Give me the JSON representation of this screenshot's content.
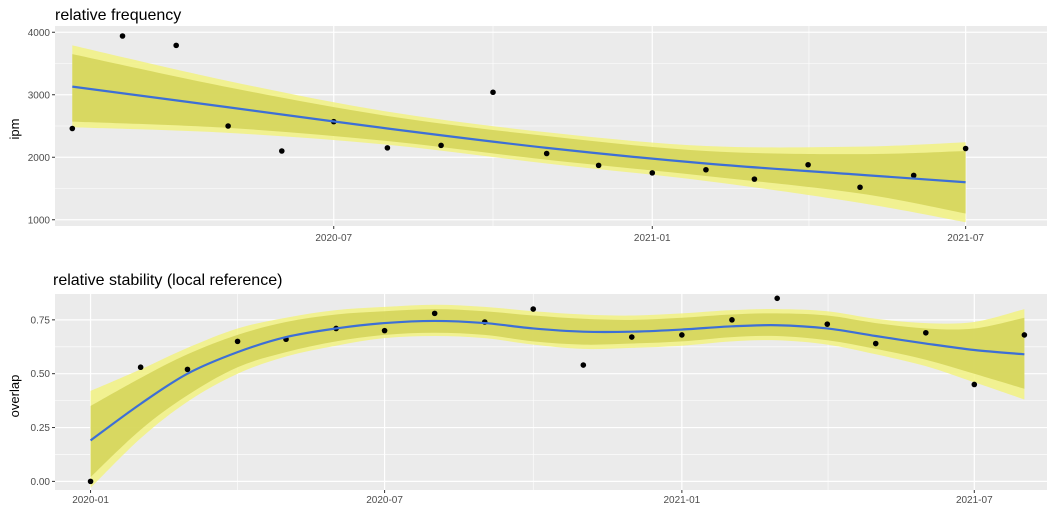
{
  "chart_data": [
    {
      "type": "scatter",
      "title": "relative frequency",
      "xlabel": "",
      "ylabel": "ipm",
      "x_axis_type": "date",
      "xlim": [
        "2020-01-22",
        "2021-08-17"
      ],
      "ylim": [
        900,
        4100
      ],
      "x_ticks": [
        "2020-07",
        "2021-01",
        "2021-07"
      ],
      "y_ticks": [
        1000,
        2000,
        3000,
        4000
      ],
      "grid": true,
      "points": [
        {
          "x": "2020-02-01",
          "y": 2460
        },
        {
          "x": "2020-03-01",
          "y": 3940
        },
        {
          "x": "2020-04-01",
          "y": 3790
        },
        {
          "x": "2020-05-01",
          "y": 2500
        },
        {
          "x": "2020-06-01",
          "y": 2100
        },
        {
          "x": "2020-07-01",
          "y": 2570
        },
        {
          "x": "2020-08-01",
          "y": 2150
        },
        {
          "x": "2020-09-01",
          "y": 2190
        },
        {
          "x": "2020-10-01",
          "y": 3040
        },
        {
          "x": "2020-11-01",
          "y": 2060
        },
        {
          "x": "2020-12-01",
          "y": 1870
        },
        {
          "x": "2021-01-01",
          "y": 1750
        },
        {
          "x": "2021-02-01",
          "y": 1800
        },
        {
          "x": "2021-03-01",
          "y": 1650
        },
        {
          "x": "2021-04-01",
          "y": 1880
        },
        {
          "x": "2021-05-01",
          "y": 1520
        },
        {
          "x": "2021-06-01",
          "y": 1710
        },
        {
          "x": "2021-07-01",
          "y": 2140
        }
      ],
      "smooth": {
        "x": [
          "2020-02-01",
          "2020-05-01",
          "2020-08-01",
          "2020-11-01",
          "2021-02-01",
          "2021-05-01",
          "2021-07-01"
        ],
        "y": [
          3130,
          2800,
          2460,
          2150,
          1900,
          1720,
          1600
        ],
        "inner_lower": [
          2570,
          2470,
          2260,
          1960,
          1700,
          1420,
          1100
        ],
        "inner_upper": [
          3650,
          3120,
          2660,
          2340,
          2100,
          2050,
          2100
        ],
        "outer_lower": [
          2480,
          2390,
          2200,
          1900,
          1620,
          1270,
          960
        ],
        "outer_upper": [
          3790,
          3220,
          2730,
          2400,
          2180,
          2170,
          2240
        ]
      }
    },
    {
      "type": "scatter",
      "title": "relative stability (local reference)",
      "xlabel": "",
      "ylabel": "overlap",
      "x_axis_type": "date",
      "xlim": [
        "2019-12-10",
        "2021-08-15"
      ],
      "ylim": [
        -0.04,
        0.87
      ],
      "x_ticks": [
        "2020-01",
        "2020-07",
        "2021-01",
        "2021-07"
      ],
      "y_ticks": [
        0.0,
        0.25,
        0.5,
        0.75
      ],
      "y_tick_labels": [
        "0.00",
        "0.25",
        "0.50",
        "0.75"
      ],
      "grid": true,
      "points": [
        {
          "x": "2020-01-01",
          "y": 0.0
        },
        {
          "x": "2020-02-01",
          "y": 0.53
        },
        {
          "x": "2020-03-01",
          "y": 0.52
        },
        {
          "x": "2020-04-01",
          "y": 0.65
        },
        {
          "x": "2020-05-01",
          "y": 0.66
        },
        {
          "x": "2020-06-01",
          "y": 0.71
        },
        {
          "x": "2020-07-01",
          "y": 0.7
        },
        {
          "x": "2020-08-01",
          "y": 0.78
        },
        {
          "x": "2020-09-01",
          "y": 0.74
        },
        {
          "x": "2020-10-01",
          "y": 0.8
        },
        {
          "x": "2020-11-01",
          "y": 0.54
        },
        {
          "x": "2020-12-01",
          "y": 0.67
        },
        {
          "x": "2021-01-01",
          "y": 0.68
        },
        {
          "x": "2021-02-01",
          "y": 0.75
        },
        {
          "x": "2021-03-01",
          "y": 0.85
        },
        {
          "x": "2021-04-01",
          "y": 0.73
        },
        {
          "x": "2021-05-01",
          "y": 0.64
        },
        {
          "x": "2021-06-01",
          "y": 0.69
        },
        {
          "x": "2021-07-01",
          "y": 0.45
        },
        {
          "x": "2021-08-01",
          "y": 0.68
        }
      ],
      "smooth": {
        "x": [
          "2020-01-01",
          "2020-02-01",
          "2020-03-01",
          "2020-04-01",
          "2020-05-01",
          "2020-06-01",
          "2020-07-01",
          "2020-08-01",
          "2020-09-01",
          "2020-10-01",
          "2020-11-01",
          "2020-12-01",
          "2021-01-01",
          "2021-02-01",
          "2021-03-01",
          "2021-04-01",
          "2021-05-01",
          "2021-06-01",
          "2021-07-01",
          "2021-08-01"
        ],
        "y": [
          0.19,
          0.36,
          0.5,
          0.6,
          0.67,
          0.71,
          0.735,
          0.745,
          0.735,
          0.71,
          0.695,
          0.695,
          0.705,
          0.72,
          0.725,
          0.71,
          0.675,
          0.64,
          0.61,
          0.59
        ],
        "inner_lower": [
          0.02,
          0.24,
          0.4,
          0.53,
          0.6,
          0.65,
          0.68,
          0.69,
          0.68,
          0.65,
          0.635,
          0.64,
          0.65,
          0.67,
          0.675,
          0.655,
          0.615,
          0.565,
          0.5,
          0.43
        ],
        "inner_upper": [
          0.35,
          0.48,
          0.59,
          0.68,
          0.74,
          0.775,
          0.79,
          0.8,
          0.79,
          0.77,
          0.755,
          0.75,
          0.76,
          0.775,
          0.78,
          0.77,
          0.735,
          0.71,
          0.71,
          0.76
        ],
        "outer_lower": [
          -0.03,
          0.2,
          0.37,
          0.5,
          0.58,
          0.63,
          0.665,
          0.675,
          0.665,
          0.635,
          0.615,
          0.62,
          0.63,
          0.65,
          0.655,
          0.635,
          0.59,
          0.535,
          0.46,
          0.38
        ],
        "outer_upper": [
          0.42,
          0.52,
          0.62,
          0.71,
          0.76,
          0.795,
          0.81,
          0.82,
          0.81,
          0.79,
          0.775,
          0.77,
          0.78,
          0.795,
          0.8,
          0.79,
          0.755,
          0.735,
          0.74,
          0.8
        ]
      }
    }
  ],
  "colors": {
    "panel_background": "#ebebeb",
    "grid": "#ffffff",
    "outer_band": "#f2f27a",
    "inner_band": "#cfcf52",
    "smooth_line": "#3d6fd6",
    "point": "#000000"
  }
}
